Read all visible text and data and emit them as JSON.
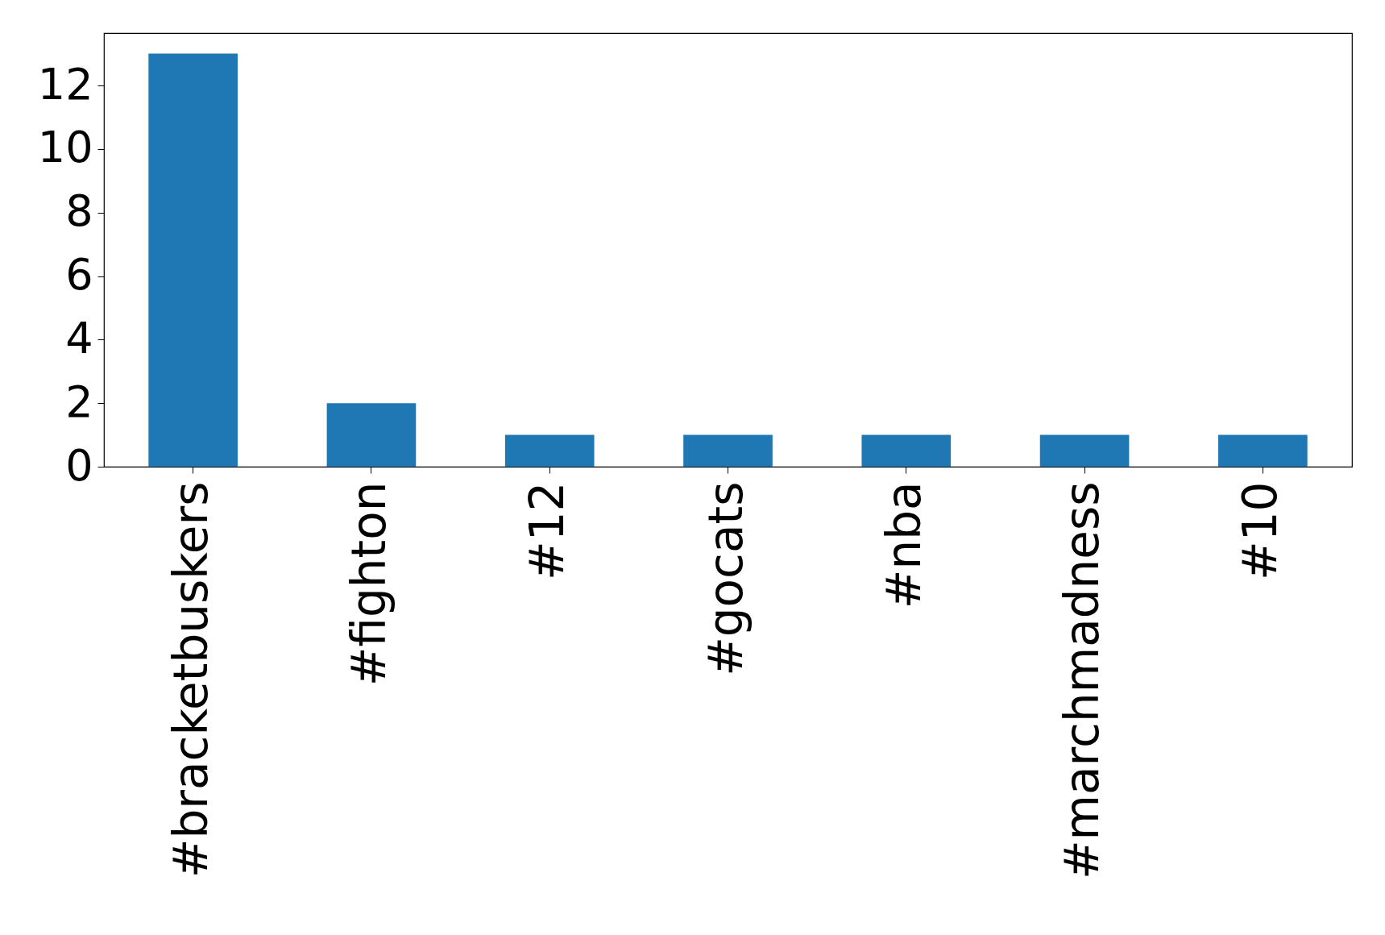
{
  "chart_data": {
    "type": "bar",
    "categories": [
      "#bracketbuskers",
      "#fighton",
      "#12",
      "#gocats",
      "#nba",
      "#marchmadness",
      "#10"
    ],
    "values": [
      13,
      2,
      1,
      1,
      1,
      1,
      1
    ],
    "color": "#1f77b4",
    "ylim": [
      0,
      13.65
    ],
    "yticks": [
      0,
      2,
      4,
      6,
      8,
      10,
      12
    ],
    "grid": false
  }
}
